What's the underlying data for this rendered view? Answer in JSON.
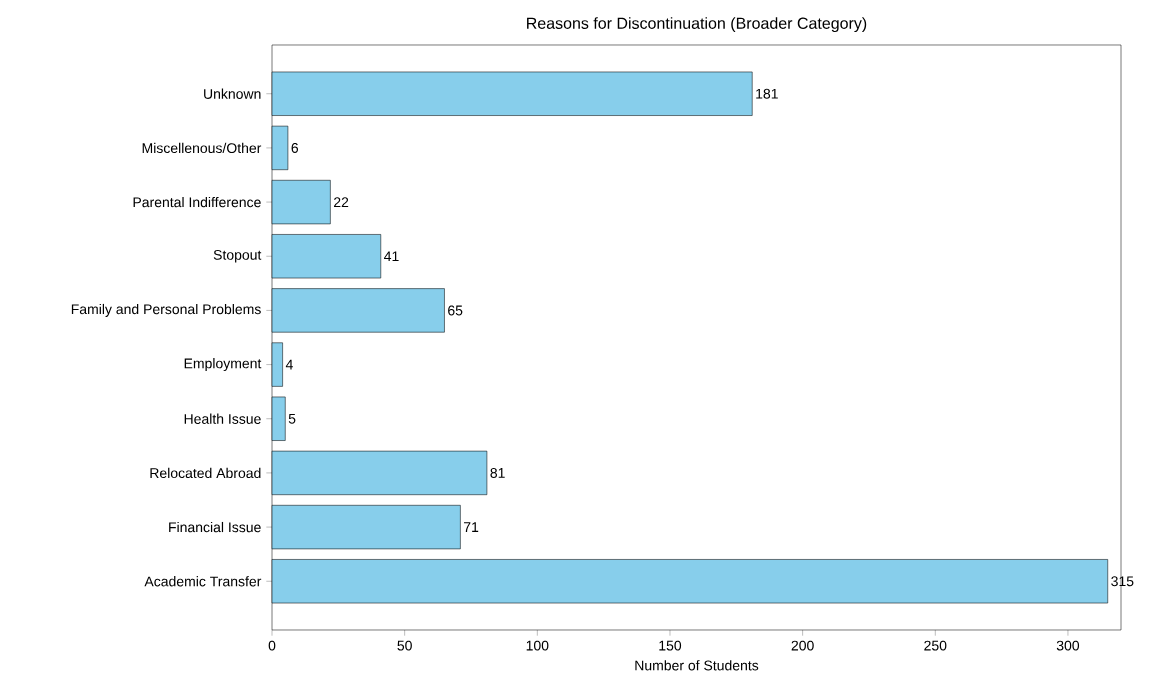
{
  "chart_data": {
    "type": "bar",
    "orientation": "horizontal",
    "title": "Reasons for Discontinuation (Broader Category)",
    "xlabel": "Number of Students",
    "categories": [
      "Unknown",
      "Miscellenous/Other",
      "Parental Indifference",
      "Stopout",
      "Family and Personal Problems",
      "Employment",
      "Health Issue",
      "Relocated Abroad",
      "Financial Issue",
      "Academic Transfer"
    ],
    "values": [
      181,
      6,
      22,
      41,
      65,
      4,
      5,
      81,
      71,
      315
    ],
    "color": "#87ceeb",
    "xlim": [
      0,
      320
    ],
    "xticks": [
      0,
      50,
      100,
      150,
      200,
      250,
      300
    ],
    "data_labels": true
  }
}
